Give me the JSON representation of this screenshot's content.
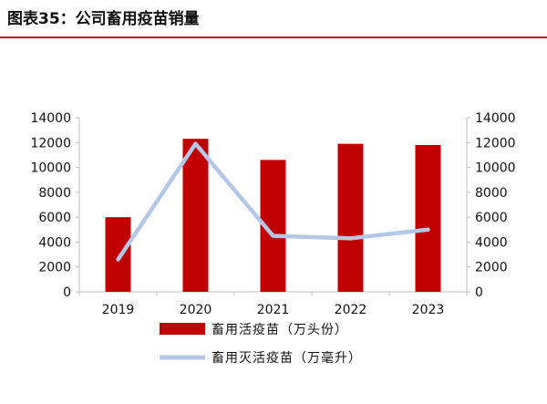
{
  "title": "图表35：公司畜用疫苗销量",
  "colors": {
    "accent_rule": "#b01c24",
    "bar": "#c00000",
    "line": "#b4c7e7"
  },
  "chart_data": {
    "type": "bar",
    "categories": [
      "2019",
      "2020",
      "2021",
      "2022",
      "2023"
    ],
    "series": [
      {
        "name": "畜用活疫苗（万头份）",
        "type": "bar",
        "axis": "left",
        "values": [
          6000,
          12300,
          10600,
          11900,
          11800
        ]
      },
      {
        "name": "畜用灭活疫苗（万毫升）",
        "type": "line",
        "axis": "right",
        "values": [
          2600,
          11900,
          4500,
          4300,
          5000
        ]
      }
    ],
    "ylim_left": [
      0,
      14000
    ],
    "ylim_right": [
      0,
      14000
    ],
    "yticks": [
      0,
      2000,
      4000,
      6000,
      8000,
      10000,
      12000,
      14000
    ],
    "grid": false,
    "legend_position": "bottom"
  }
}
